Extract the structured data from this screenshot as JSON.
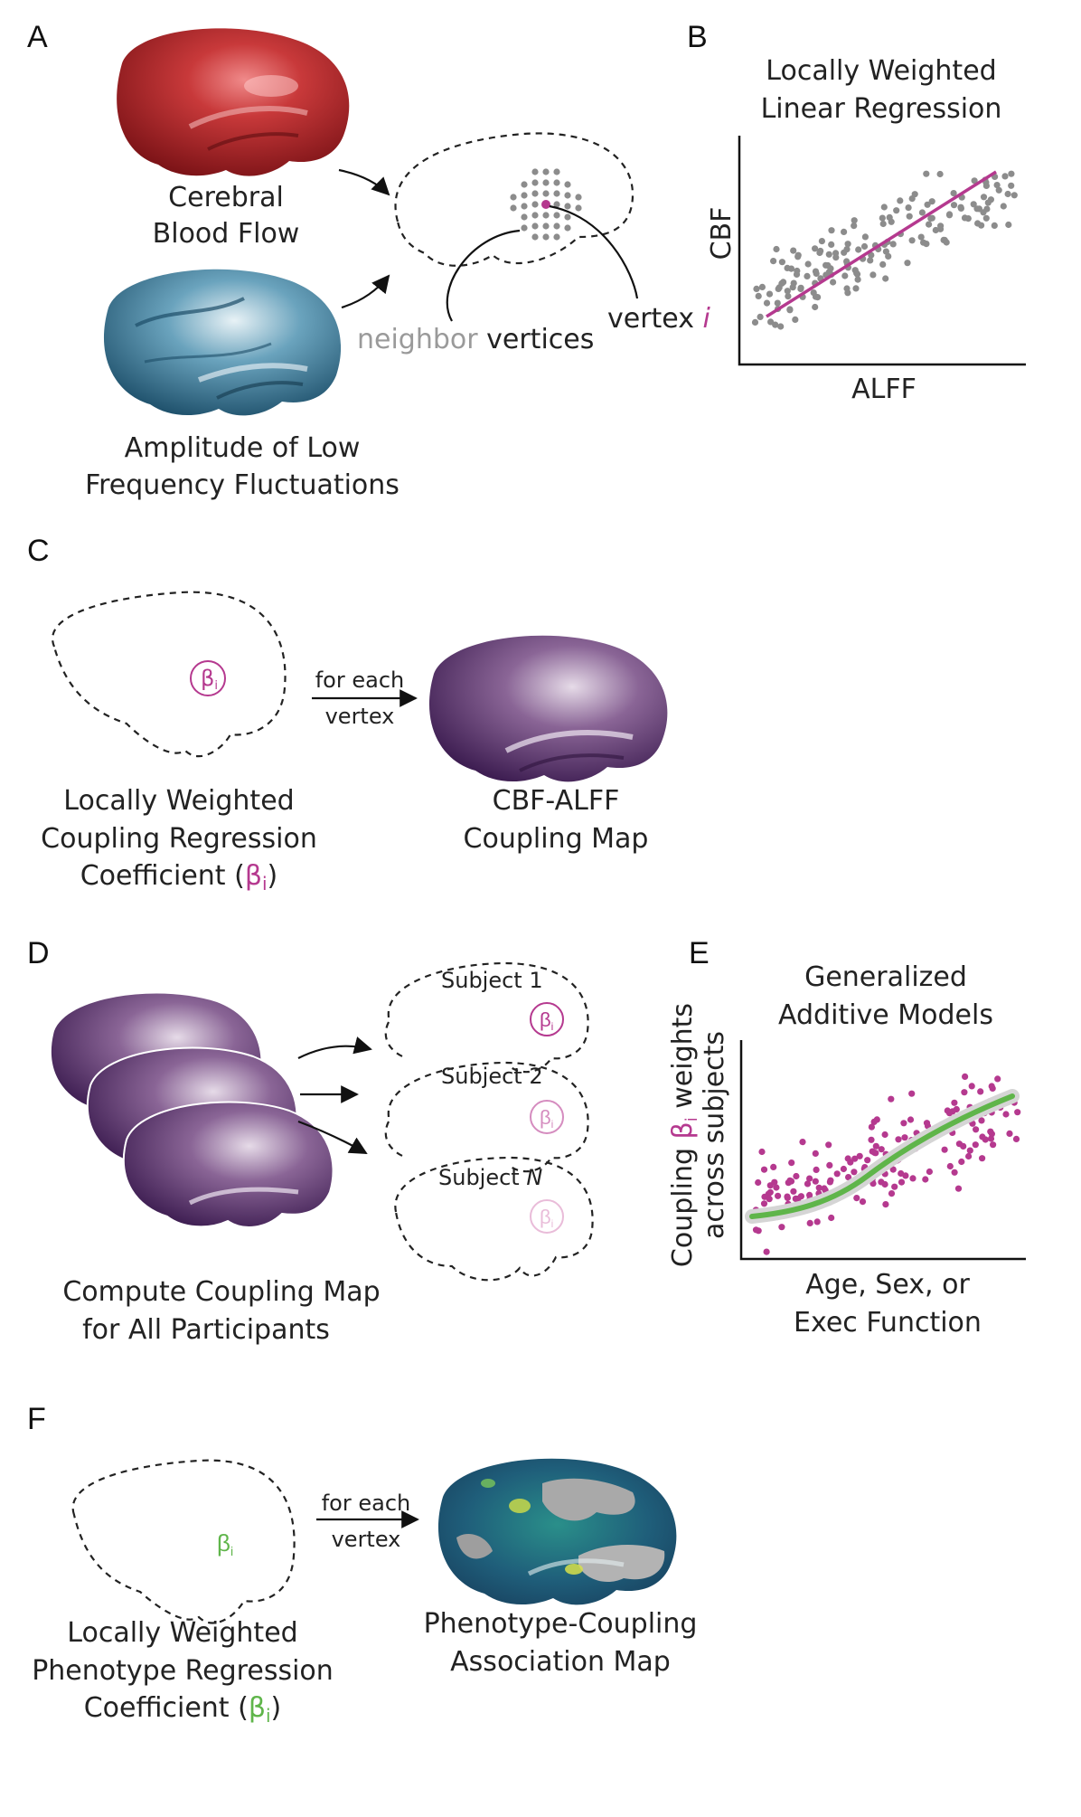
{
  "panels": {
    "a": {
      "letter": "A",
      "cbf_label_1": "Cerebral",
      "cbf_label_2": "Blood Flow",
      "alff_label_1": "Amplitude of Low",
      "alff_label_2": "Frequency Fluctuations",
      "neighbor_word": "neighbor",
      "vertices_word": "vertices",
      "vertex_word": "vertex",
      "vertex_index": "i"
    },
    "b": {
      "letter": "B",
      "title_1": "Locally Weighted",
      "title_2": "Linear Regression",
      "ylabel": "CBF",
      "xlabel": "ALFF"
    },
    "c": {
      "letter": "C",
      "beta_symbol": "β",
      "beta_sub": "i",
      "arrow_label_1": "for each",
      "arrow_label_2": "vertex",
      "left_caption_1": "Locally Weighted",
      "left_caption_2": "Coupling Regression",
      "left_caption_3": "Coefficient (",
      "left_caption_beta": "β",
      "left_caption_sub": "i",
      "left_caption_close": ")",
      "right_caption_1": "CBF-ALFF",
      "right_caption_2": "Coupling Map"
    },
    "d": {
      "letter": "D",
      "subject_1": "Subject 1",
      "subject_2": "Subject 2",
      "subject_n_prefix": "Subject ",
      "subject_n_italic": "N",
      "beta_symbol": "β",
      "beta_sub": "i",
      "caption_1": "Compute Coupling Map",
      "caption_2": "for All Participants"
    },
    "e": {
      "letter": "E",
      "title_1": "Generalized",
      "title_2": "Additive Models",
      "ylabel_1_prefix": "Coupling ",
      "ylabel_1_beta": "β",
      "ylabel_1_sub": "i",
      "ylabel_1_suffix": " weights",
      "ylabel_2": "across subjects",
      "xlabel_1": "Age, Sex, or",
      "xlabel_2": "Exec Function"
    },
    "f": {
      "letter": "F",
      "beta_symbol": "β",
      "beta_sub": "i",
      "arrow_label_1": "for each",
      "arrow_label_2": "vertex",
      "left_caption_1": "Locally Weighted",
      "left_caption_2": "Phenotype Regression",
      "left_caption_3": "Coefficient (",
      "left_caption_beta": "β",
      "left_caption_sub": "i",
      "left_caption_close": ")",
      "right_caption_1": "Phenotype-Coupling",
      "right_caption_2": "Association Map"
    }
  },
  "colors": {
    "cbf_red": "#b3262b",
    "alff_blue": "#3f7f9c",
    "coupling_purple": "#6a3f7f",
    "beta_magenta": "#b5398f",
    "phenotype_green": "#5fb54a",
    "neighbor_gray": "#9a9a9a",
    "point_gray": "#8c8c8c"
  }
}
